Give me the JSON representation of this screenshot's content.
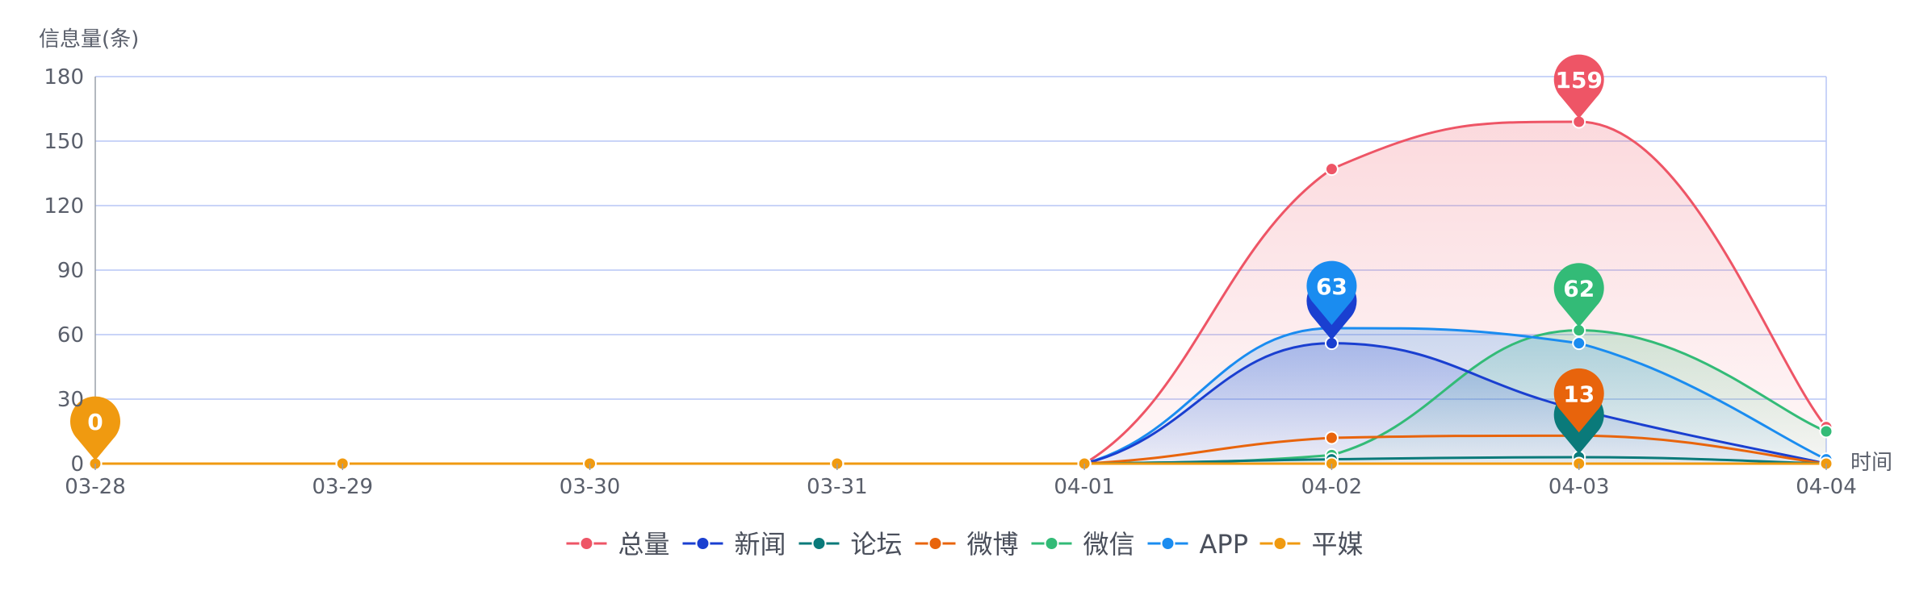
{
  "chart_data": {
    "type": "line",
    "ylabel": "信息量(条)",
    "xlabel": "时间",
    "ylim": [
      0,
      180
    ],
    "yticks": [
      0,
      30,
      60,
      90,
      120,
      150,
      180
    ],
    "x": [
      "03-28",
      "03-29",
      "03-30",
      "03-31",
      "04-01",
      "04-02",
      "04-03",
      "04-04"
    ],
    "grid": true,
    "legend_position": "bottom-center",
    "series": [
      {
        "name": "总量",
        "color": "#ee5566",
        "values": [
          0,
          0,
          0,
          0,
          0,
          137,
          159,
          17
        ],
        "area": true
      },
      {
        "name": "新闻",
        "color": "#1a3fd0",
        "values": [
          0,
          0,
          0,
          0,
          0,
          56,
          25,
          0
        ],
        "area": true
      },
      {
        "name": "论坛",
        "color": "#0a7a7a",
        "values": [
          0,
          0,
          0,
          0,
          0,
          2,
          3,
          0
        ],
        "area": false
      },
      {
        "name": "微博",
        "color": "#e8640c",
        "values": [
          0,
          0,
          0,
          0,
          0,
          12,
          13,
          0
        ],
        "area": false
      },
      {
        "name": "微信",
        "color": "#33bb77",
        "values": [
          0,
          0,
          0,
          0,
          0,
          4,
          62,
          15
        ],
        "area": true
      },
      {
        "name": "APP",
        "color": "#1a8cf0",
        "values": [
          0,
          0,
          0,
          0,
          0,
          63,
          56,
          2
        ],
        "area": true
      },
      {
        "name": "平媒",
        "color": "#f09a10",
        "values": [
          0,
          0,
          0,
          0,
          0,
          0,
          0,
          0
        ],
        "area": false
      }
    ],
    "markers": [
      {
        "series": "平媒",
        "x": "03-28",
        "value": 0,
        "label": "0"
      },
      {
        "series": "新闻",
        "x": "04-02",
        "value": 56,
        "label": ""
      },
      {
        "series": "APP",
        "x": "04-02",
        "value": 63,
        "label": "63"
      },
      {
        "series": "总量",
        "x": "04-03",
        "value": 159,
        "label": "159"
      },
      {
        "series": "微信",
        "x": "04-03",
        "value": 62,
        "label": "62"
      },
      {
        "series": "论坛",
        "x": "04-03",
        "value": 3,
        "label": ""
      },
      {
        "series": "微博",
        "x": "04-03",
        "value": 13,
        "label": "13"
      }
    ]
  }
}
